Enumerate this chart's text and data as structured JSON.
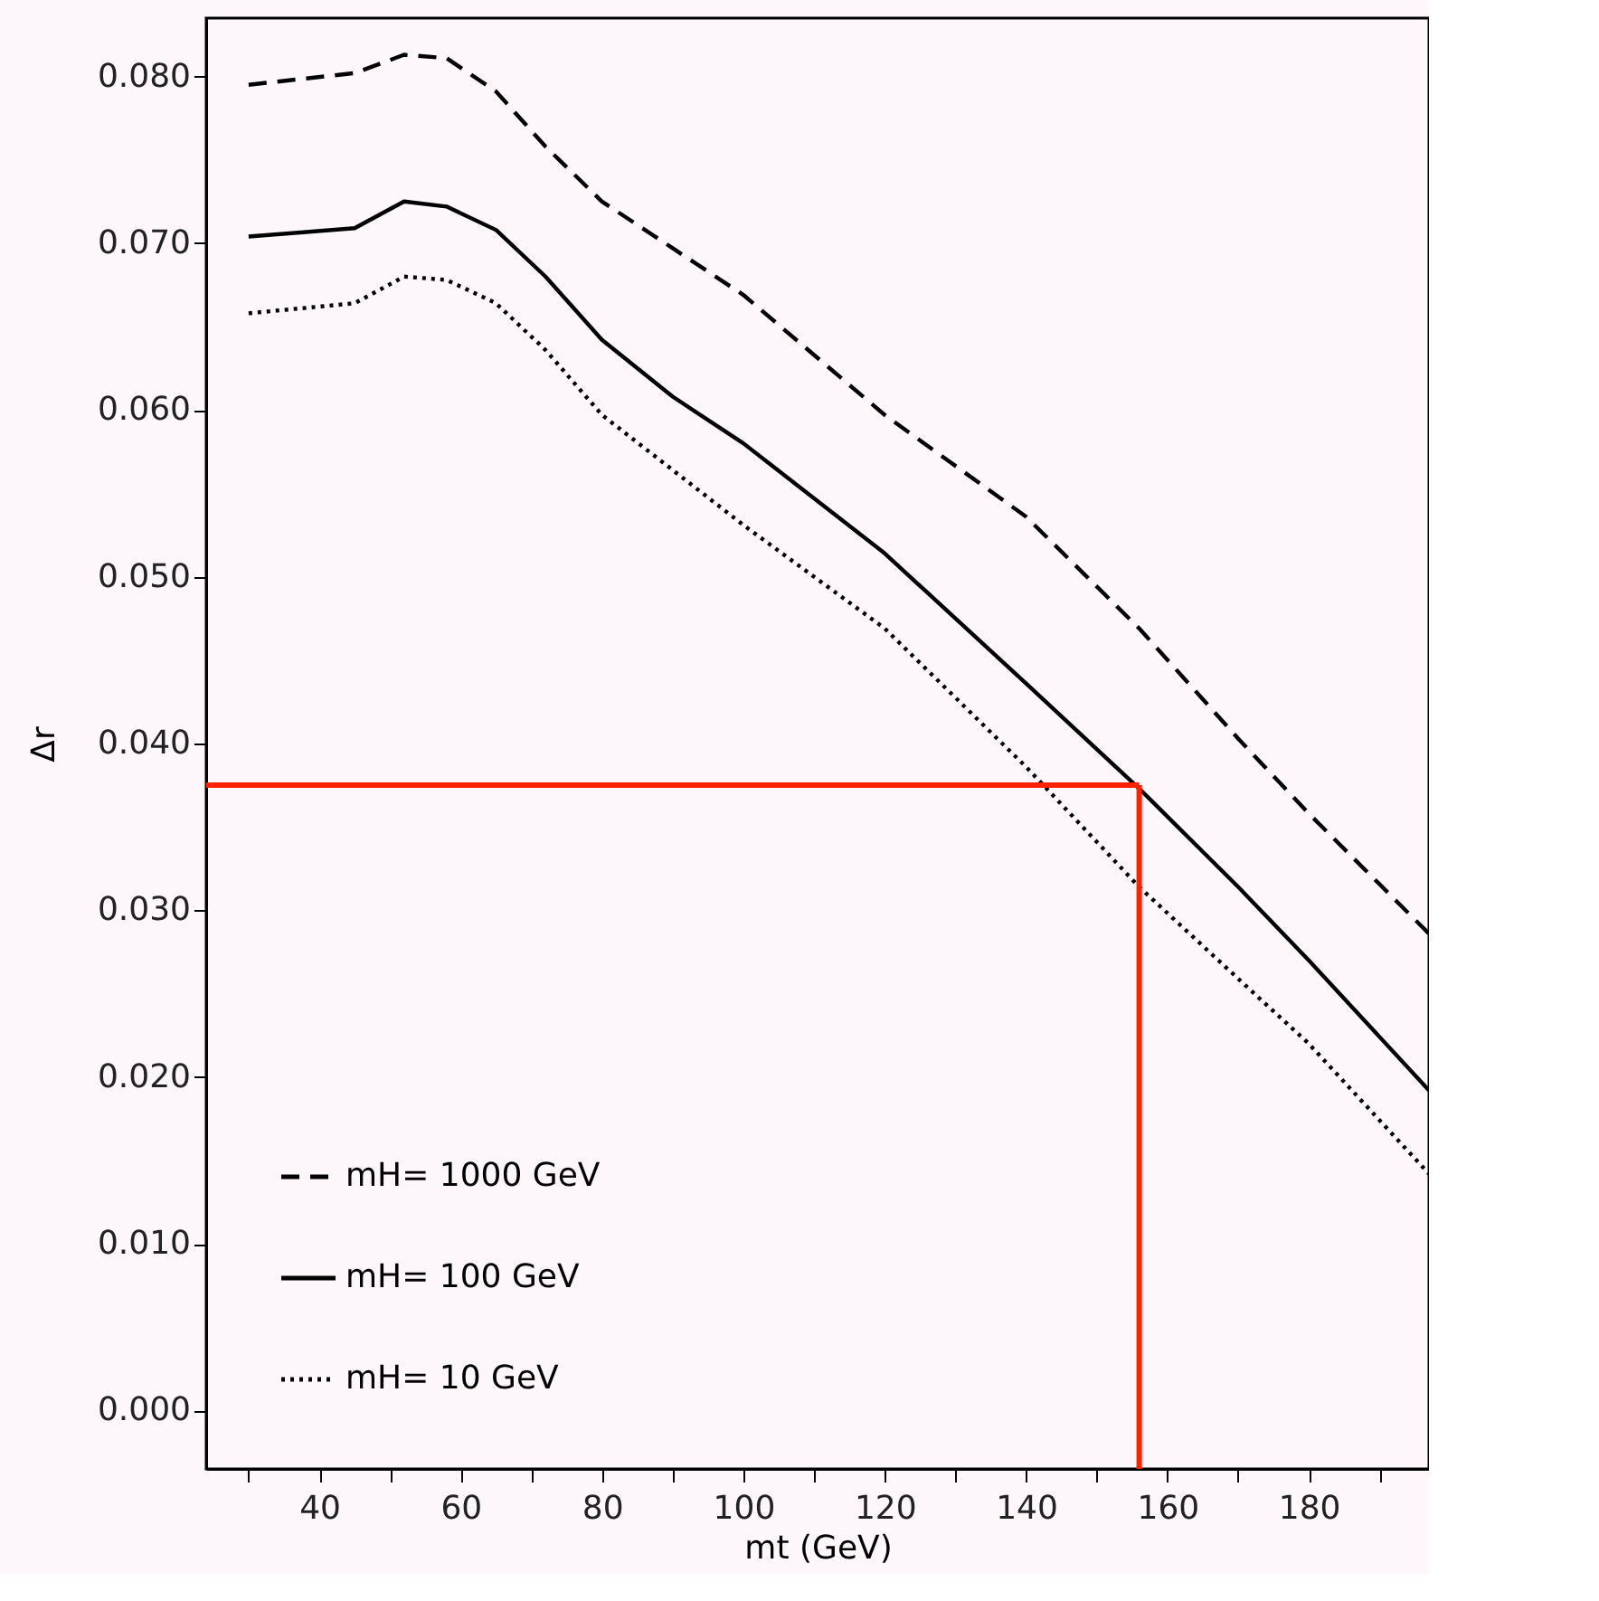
{
  "chart_data": {
    "type": "line",
    "xlabel": "mt (GeV)",
    "ylabel": "Δr",
    "xlim": [
      24,
      197
    ],
    "ylim": [
      -0.0035,
      0.0835
    ],
    "xticks": [
      {
        "value": 30,
        "label": null
      },
      40,
      {
        "value": 50,
        "label": null
      },
      60,
      {
        "value": 70,
        "label": null
      },
      80,
      {
        "value": 90,
        "label": null
      },
      100,
      {
        "value": 110,
        "label": null
      },
      120,
      {
        "value": 130,
        "label": null
      },
      140,
      {
        "value": 150,
        "label": null
      },
      160,
      {
        "value": 170,
        "label": null
      },
      180,
      {
        "value": 190,
        "label": null
      }
    ],
    "yticks": [
      {
        "value": 0,
        "label": "0.000"
      },
      {
        "value": 0.01,
        "label": "0.010"
      },
      {
        "value": 0.02,
        "label": "0.020"
      },
      {
        "value": 0.03,
        "label": "0.030"
      },
      {
        "value": 0.04,
        "label": "0.040"
      },
      {
        "value": 0.05,
        "label": "0.050"
      },
      {
        "value": 0.06,
        "label": "0.060"
      },
      {
        "value": 0.07,
        "label": "0.070"
      },
      {
        "value": 0.08,
        "label": "0.080"
      }
    ],
    "grid": false,
    "legend": "bottom left",
    "x": [
      30,
      45,
      52,
      58,
      65,
      72,
      80,
      90,
      100,
      120,
      140,
      156,
      170,
      180,
      197
    ],
    "series": [
      {
        "name": "mH= 1000 GeV",
        "color": "#000000",
        "line_style": "dashed",
        "values": [
          0.0795,
          0.0802,
          0.0813,
          0.0811,
          0.0791,
          0.0758,
          0.0725,
          0.0697,
          0.0669,
          0.0597,
          0.0536,
          0.0469,
          0.0403,
          0.0358,
          0.0286
        ]
      },
      {
        "name": "mH=  100 GeV",
        "color": "#000000",
        "line_style": "solid",
        "values": [
          0.0704,
          0.0709,
          0.0725,
          0.0722,
          0.0708,
          0.068,
          0.0642,
          0.0608,
          0.058,
          0.0514,
          0.0436,
          0.0373,
          0.0314,
          0.027,
          0.0192
        ]
      },
      {
        "name": "mH=   10 GeV",
        "color": "#000000",
        "line_style": "dotted",
        "values": [
          0.0658,
          0.0664,
          0.068,
          0.0678,
          0.0664,
          0.0636,
          0.0597,
          0.0564,
          0.0531,
          0.0469,
          0.0386,
          0.0314,
          0.0259,
          0.022,
          0.0142
        ]
      }
    ],
    "ref_lines": [
      {
        "axis": "x",
        "value": 156,
        "color": "#ff2200"
      },
      {
        "axis": "y",
        "value": 0.0375,
        "color": "#ff2200"
      }
    ]
  }
}
